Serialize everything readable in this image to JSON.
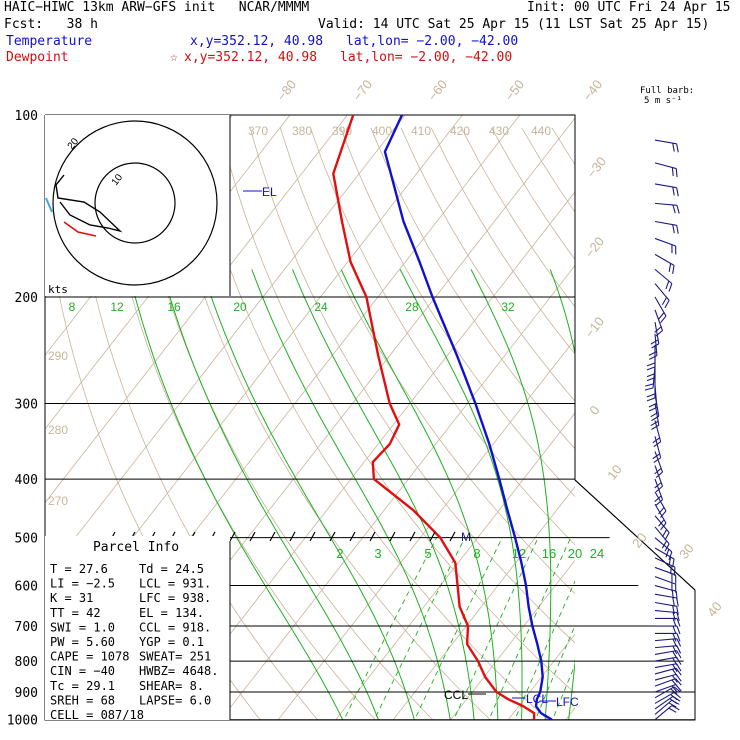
{
  "header": {
    "model": "HAIC−HIWC 13km ARW−GFS init   NCAR/MMMM",
    "init": "Init: 00 UTC Fri 24 Apr 15",
    "fcst": "Fcst:   38 h",
    "valid": "Valid: 14 UTC Sat 25 Apr 15 (11 LST Sat 25 Apr 15)",
    "temperature_label": "Temperature",
    "temperature_xy": "x,y=352.12, 40.98",
    "temperature_latlon": "lat,lon= −2.00, −42.00",
    "dewpoint_label": "Dewpoint",
    "dewpoint_xy": "x,y=352.12, 40.98",
    "dewpoint_latlon": "lat,lon= −2.00, −42.00",
    "dewpoint_star": "☆",
    "barb_label_1": "Full barb:",
    "barb_label_2": "5 m s⁻¹"
  },
  "colors": {
    "temperature": "#1010d0",
    "dewpoint": "#e01010",
    "dry_adiabat": "#c8b49a",
    "isotherm": "#c8b49a",
    "moist_adiabat": "#20b020",
    "mixing_ratio": "#20b020",
    "isobar": "#000000",
    "barbs": "#1a1a80"
  },
  "chart_data": {
    "type": "line",
    "title": "",
    "xlabel": "",
    "ylabel": "",
    "pressure_levels": [
      "100",
      "200",
      "300",
      "400",
      "500",
      "600",
      "700",
      "800",
      "900",
      "1000"
    ],
    "isotherm_labels": [
      "−80",
      "−70",
      "−60",
      "−50",
      "−40",
      "−30",
      "−20",
      "−10",
      "0",
      "10",
      "20",
      "30",
      "40"
    ],
    "theta_labels": [
      "370",
      "380",
      "390",
      "400",
      "410",
      "420",
      "430",
      "440",
      "290",
      "280",
      "270"
    ],
    "theta_e_labels": [
      "8",
      "12",
      "16",
      "20",
      "24",
      "28",
      "32"
    ],
    "mixing_ratio_labels": [
      "2",
      "3",
      "5",
      "8",
      "12",
      "16",
      "20",
      "24"
    ],
    "series": [
      {
        "name": "Temperature",
        "points": [
          [
            1000,
            27.6
          ],
          [
            975,
            24.8
          ],
          [
            950,
            23.0
          ],
          [
            925,
            22.2
          ],
          [
            900,
            21.8
          ],
          [
            850,
            20.2
          ],
          [
            800,
            17.8
          ],
          [
            750,
            14.8
          ],
          [
            700,
            11.5
          ],
          [
            650,
            8.2
          ],
          [
            600,
            4.9
          ],
          [
            550,
            1.0
          ],
          [
            500,
            -3.5
          ],
          [
            450,
            -8.6
          ],
          [
            400,
            -14.2
          ],
          [
            350,
            -20.7
          ],
          [
            300,
            -28.6
          ],
          [
            250,
            -38.3
          ],
          [
            200,
            -50.5
          ],
          [
            175,
            -57.5
          ],
          [
            150,
            -65.8
          ],
          [
            125,
            -74.5
          ],
          [
            115,
            -78.5
          ],
          [
            100,
            -80.5
          ]
        ]
      },
      {
        "name": "Dewpoint",
        "points": [
          [
            1000,
            24.5
          ],
          [
            975,
            23.6
          ],
          [
            950,
            20.8
          ],
          [
            925,
            17.2
          ],
          [
            900,
            14.2
          ],
          [
            850,
            10.2
          ],
          [
            800,
            6.8
          ],
          [
            750,
            2.6
          ],
          [
            700,
            0.3
          ],
          [
            650,
            -3.8
          ],
          [
            600,
            -7.0
          ],
          [
            550,
            -10.5
          ],
          [
            500,
            -16.5
          ],
          [
            450,
            -25.0
          ],
          [
            400,
            -36.0
          ],
          [
            375,
            -38.5
          ],
          [
            350,
            -38.0
          ],
          [
            325,
            -39.0
          ],
          [
            300,
            -43.5
          ],
          [
            250,
            -52.0
          ],
          [
            200,
            -62.0
          ],
          [
            175,
            -69.5
          ],
          [
            150,
            -76.5
          ],
          [
            125,
            -84.5
          ],
          [
            100,
            -89.0
          ]
        ]
      }
    ],
    "annotations": [
      "EL",
      "LCL",
      "LFC",
      "CCL",
      "M"
    ]
  },
  "hodograph": {
    "units_label": "kts",
    "ring_labels": [
      "10",
      "20"
    ]
  },
  "parcel_info": {
    "title": "Parcel Info",
    "rows": [
      [
        "T   =   27.6",
        "Td  =  24.5"
      ],
      [
        "LI  =   −2.5",
        "LCL =  931."
      ],
      [
        "K   =     31",
        "LFC =  938."
      ],
      [
        "TT  =     42",
        "EL  =  134."
      ],
      [
        "SWI =    1.0",
        "CCL =  918."
      ],
      [
        "PW  =   5.60",
        "YGP =   0.1"
      ],
      [
        "CAPE =  1078",
        "SWEAT=  251"
      ],
      [
        "CIN  =   −40",
        "HWBZ= 4648."
      ],
      [
        "Tc  =   29.1",
        "SHEAR=   8."
      ],
      [
        "SREH =    68",
        "LAPSE=  6.0"
      ],
      [
        "CELL = 087/18",
        ""
      ]
    ]
  },
  "wind_barbs": {
    "levels_hpa": [
      110,
      120,
      130,
      140,
      150,
      160,
      170,
      180,
      190,
      200,
      210,
      220,
      230,
      240,
      250,
      260,
      270,
      280,
      290,
      300,
      320,
      340,
      360,
      380,
      400,
      420,
      440,
      460,
      480,
      500,
      520,
      540,
      560,
      580,
      600,
      620,
      640,
      660,
      680,
      700,
      720,
      740,
      760,
      780,
      800,
      820,
      840,
      860,
      880,
      900,
      920,
      940,
      960,
      980,
      1000
    ],
    "direction_deg": [
      100,
      105,
      100,
      95,
      100,
      110,
      120,
      130,
      140,
      150,
      160,
      170,
      175,
      180,
      180,
      185,
      180,
      175,
      170,
      170,
      165,
      165,
      160,
      160,
      160,
      150,
      150,
      140,
      140,
      130,
      120,
      115,
      110,
      110,
      105,
      100,
      100,
      95,
      90,
      90,
      90,
      85,
      85,
      80,
      80,
      80,
      75,
      75,
      70,
      70,
      60,
      60,
      55,
      50,
      50
    ],
    "speed_ms": [
      12,
      12,
      10,
      10,
      12,
      12,
      14,
      12,
      10,
      10,
      10,
      10,
      10,
      10,
      10,
      10,
      10,
      10,
      10,
      10,
      10,
      10,
      10,
      10,
      10,
      10,
      10,
      10,
      10,
      10,
      10,
      10,
      10,
      10,
      10,
      10,
      10,
      10,
      10,
      10,
      10,
      10,
      10,
      10,
      10,
      10,
      10,
      10,
      10,
      10,
      10,
      12,
      12,
      12,
      12
    ]
  }
}
